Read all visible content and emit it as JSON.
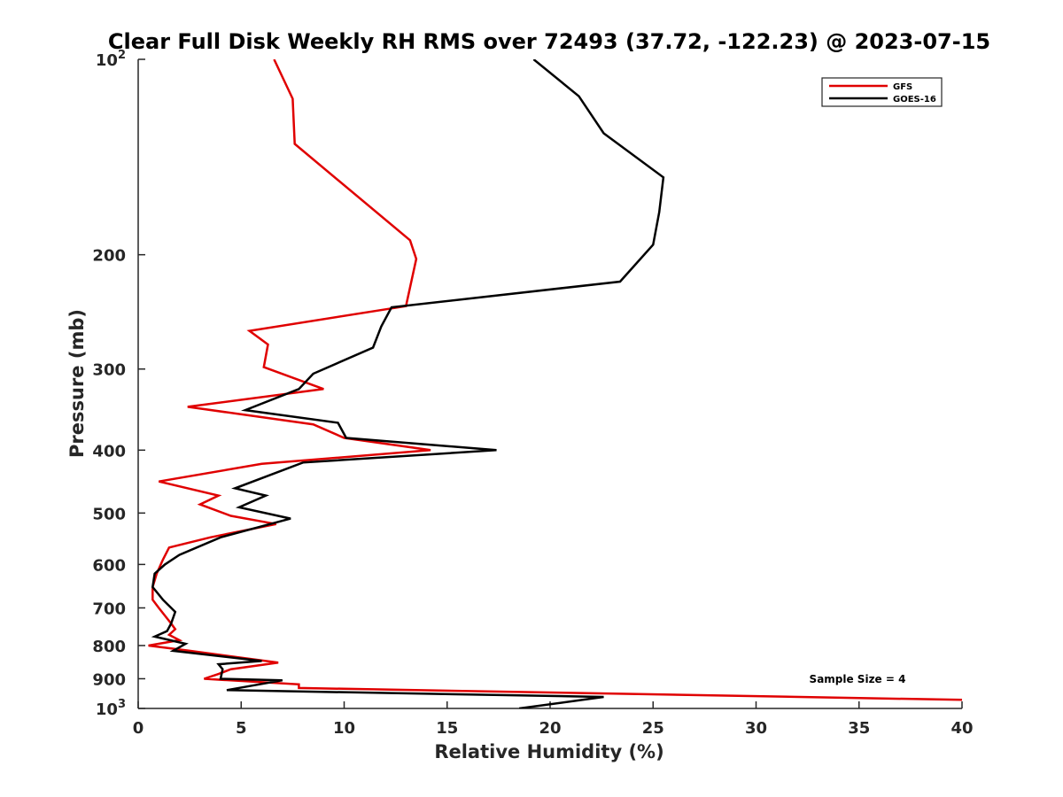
{
  "chart_data": {
    "type": "line",
    "title": "Clear Full Disk Weekly RH RMS over 72493 (37.72, -122.23) @ 2023-07-15",
    "xlabel": "Relative Humidity (%)",
    "ylabel": "Pressure (mb)",
    "xlim": [
      0,
      40
    ],
    "ylim": [
      100,
      1000
    ],
    "y_scale": "log",
    "y_reversed": true,
    "x_ticks": [
      "0",
      "5",
      "10",
      "15",
      "20",
      "25",
      "30",
      "35",
      "40"
    ],
    "y_ticks": [
      {
        "value": 100,
        "base": "10",
        "exp": "2"
      },
      {
        "value": 200,
        "label": "200"
      },
      {
        "value": 300,
        "label": "300"
      },
      {
        "value": 400,
        "label": "400"
      },
      {
        "value": 500,
        "label": "500"
      },
      {
        "value": 600,
        "label": "600"
      },
      {
        "value": 700,
        "label": "700"
      },
      {
        "value": 800,
        "label": "800"
      },
      {
        "value": 900,
        "label": "900"
      },
      {
        "value": 1000,
        "base": "10",
        "exp": "3"
      }
    ],
    "grid": false,
    "legend_position": "top-right",
    "annotation": "Sample Size = 4",
    "series": [
      {
        "name": "GFS",
        "color": "#e00000",
        "points": [
          [
            6.6,
            100
          ],
          [
            7.5,
            115
          ],
          [
            7.6,
            135
          ],
          [
            13.2,
            190
          ],
          [
            13.5,
            203
          ],
          [
            13.0,
            240
          ],
          [
            5.4,
            262
          ],
          [
            6.3,
            275
          ],
          [
            6.1,
            298
          ],
          [
            9.0,
            322
          ],
          [
            2.4,
            343
          ],
          [
            8.5,
            365
          ],
          [
            10.0,
            383
          ],
          [
            14.2,
            400
          ],
          [
            6.0,
            420
          ],
          [
            1.0,
            447
          ],
          [
            3.9,
            470
          ],
          [
            3.0,
            485
          ],
          [
            4.5,
            505
          ],
          [
            6.7,
            520
          ],
          [
            3.5,
            545
          ],
          [
            1.5,
            565
          ],
          [
            1.2,
            590
          ],
          [
            0.9,
            620
          ],
          [
            0.7,
            650
          ],
          [
            0.7,
            680
          ],
          [
            1.0,
            700
          ],
          [
            1.6,
            740
          ],
          [
            1.8,
            755
          ],
          [
            1.5,
            770
          ],
          [
            2.0,
            785
          ],
          [
            0.5,
            800
          ],
          [
            2.5,
            815
          ],
          [
            6.8,
            850
          ],
          [
            4.5,
            870
          ],
          [
            3.9,
            885
          ],
          [
            3.2,
            900
          ],
          [
            7.8,
            918
          ],
          [
            7.8,
            930
          ],
          [
            40.0,
            970
          ]
        ]
      },
      {
        "name": "GOES-16",
        "color": "#000000",
        "points": [
          [
            19.2,
            100
          ],
          [
            21.4,
            114
          ],
          [
            22.6,
            130
          ],
          [
            25.5,
            152
          ],
          [
            25.3,
            172
          ],
          [
            25.0,
            193
          ],
          [
            23.4,
            220
          ],
          [
            12.3,
            241
          ],
          [
            11.8,
            258
          ],
          [
            11.4,
            278
          ],
          [
            8.5,
            305
          ],
          [
            7.8,
            322
          ],
          [
            5.2,
            347
          ],
          [
            9.7,
            363
          ],
          [
            10.1,
            383
          ],
          [
            17.4,
            400
          ],
          [
            8.0,
            418
          ],
          [
            4.7,
            458
          ],
          [
            6.2,
            470
          ],
          [
            4.9,
            490
          ],
          [
            7.4,
            510
          ],
          [
            4.0,
            545
          ],
          [
            2.0,
            580
          ],
          [
            1.3,
            600
          ],
          [
            0.8,
            620
          ],
          [
            0.7,
            650
          ],
          [
            1.2,
            680
          ],
          [
            1.8,
            710
          ],
          [
            1.6,
            740
          ],
          [
            1.4,
            760
          ],
          [
            0.8,
            775
          ],
          [
            2.3,
            795
          ],
          [
            1.7,
            815
          ],
          [
            6.0,
            845
          ],
          [
            3.9,
            855
          ],
          [
            4.1,
            870
          ],
          [
            4.0,
            900
          ],
          [
            7.0,
            905
          ],
          [
            4.3,
            937
          ],
          [
            22.6,
            960
          ],
          [
            18.5,
            1000
          ]
        ]
      }
    ]
  }
}
